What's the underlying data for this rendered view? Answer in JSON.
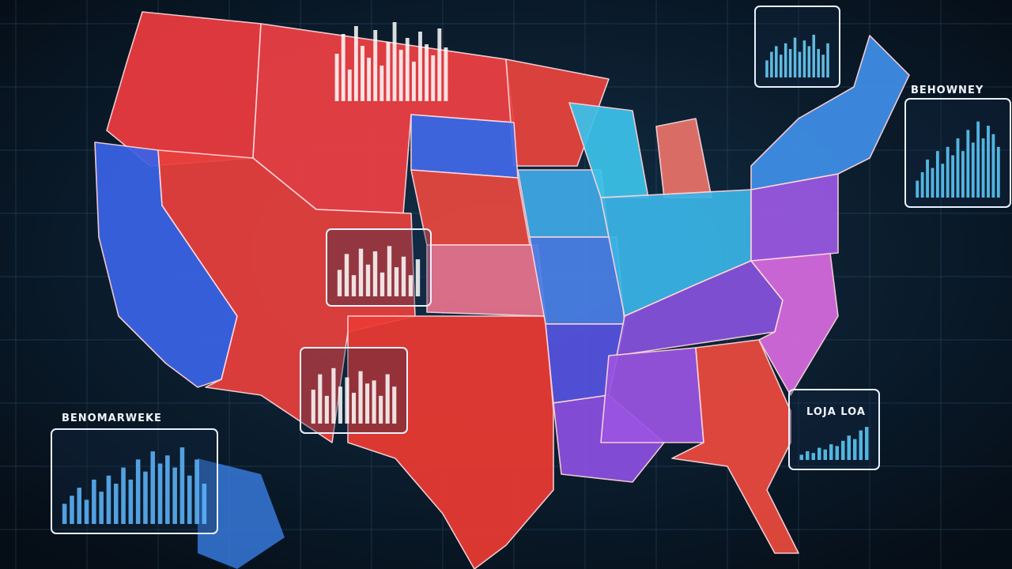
{
  "panels": [
    {
      "bars": [
        60,
        85,
        40,
        95,
        70,
        55,
        90,
        45,
        75,
        100,
        65,
        80,
        50,
        88,
        72,
        58,
        92,
        68
      ]
    },
    {
      "bars": [
        30,
        45,
        55,
        40,
        60,
        50,
        70,
        45,
        65,
        55,
        75,
        50,
        40,
        60
      ]
    },
    {
      "label": "BEHOWNEY",
      "bars": [
        20,
        30,
        45,
        35,
        55,
        40,
        60,
        50,
        70,
        55,
        80,
        65,
        90,
        70,
        85,
        75,
        60
      ]
    },
    {
      "bars": [
        50,
        80,
        40,
        90,
        60,
        85,
        45,
        95,
        55,
        75,
        40,
        70
      ]
    },
    {
      "bars": [
        55,
        80,
        45,
        90,
        60,
        75,
        50,
        85,
        65,
        70,
        45,
        80,
        60
      ]
    },
    {
      "label": "LOJA LOA",
      "bars": [
        15,
        25,
        20,
        35,
        30,
        45,
        40,
        55,
        70,
        60,
        85,
        95
      ]
    },
    {
      "label": "BENOMARWEKE",
      "bars": [
        25,
        35,
        45,
        30,
        55,
        40,
        60,
        50,
        70,
        55,
        80,
        65,
        90,
        75,
        85,
        70,
        95,
        60,
        80,
        50
      ]
    }
  ]
}
